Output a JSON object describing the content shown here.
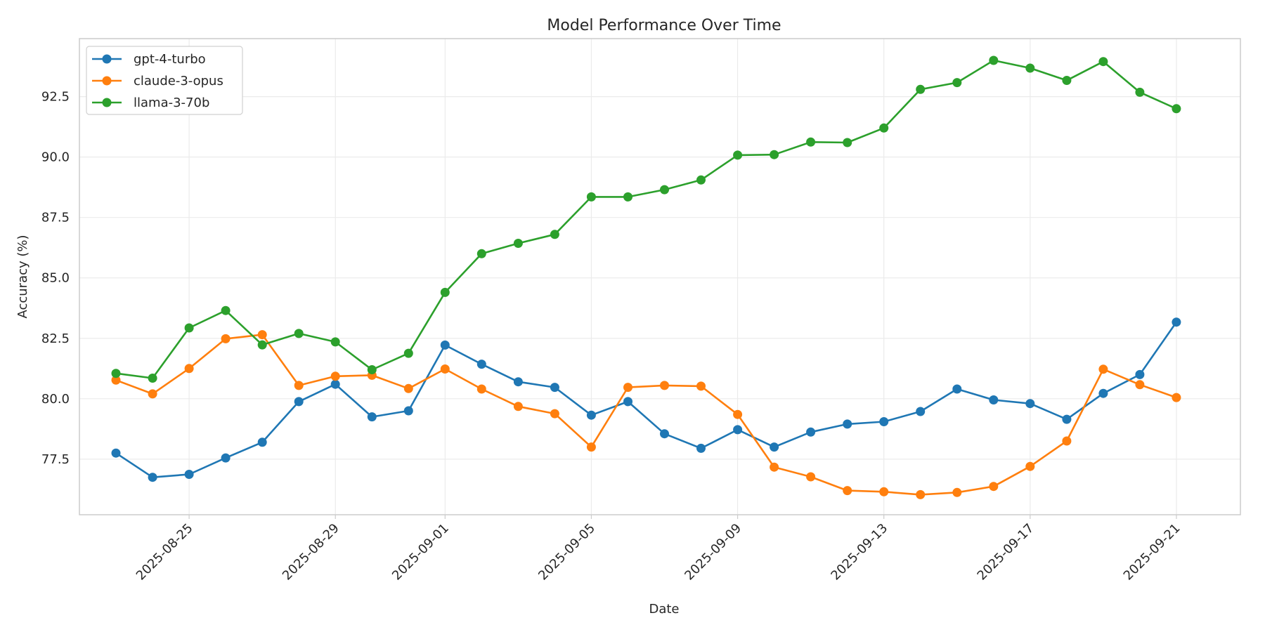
{
  "chart_data": {
    "type": "line",
    "title": "Model Performance Over Time",
    "xlabel": "Date",
    "ylabel": "Accuracy (%)",
    "x_ticks": [
      "2025-08-25",
      "2025-08-29",
      "2025-09-01",
      "2025-09-05",
      "2025-09-09",
      "2025-09-13",
      "2025-09-17",
      "2025-09-21"
    ],
    "y_ticks": [
      "77.5",
      "80.0",
      "82.5",
      "85.0",
      "87.5",
      "90.0",
      "92.5"
    ],
    "ylim": [
      75.2,
      94.9
    ],
    "xlim": [
      "2025-08-22T00:00",
      "2025-09-22T18:00"
    ],
    "grid": true,
    "legend_position": "upper-left",
    "x": [
      "2025-08-23",
      "2025-08-24",
      "2025-08-25",
      "2025-08-26",
      "2025-08-27",
      "2025-08-28",
      "2025-08-29",
      "2025-08-30",
      "2025-08-31",
      "2025-09-01",
      "2025-09-02",
      "2025-09-03",
      "2025-09-04",
      "2025-09-05",
      "2025-09-06",
      "2025-09-07",
      "2025-09-08",
      "2025-09-09",
      "2025-09-10",
      "2025-09-11",
      "2025-09-12",
      "2025-09-13",
      "2025-09-14",
      "2025-09-15",
      "2025-09-16",
      "2025-09-17",
      "2025-09-18",
      "2025-09-19",
      "2025-09-20",
      "2025-09-21"
    ],
    "series": [
      {
        "name": "gpt-4-turbo",
        "color": "#1f77b4",
        "values": [
          77.75,
          76.75,
          76.87,
          77.55,
          78.2,
          79.88,
          80.6,
          79.25,
          79.5,
          82.22,
          81.43,
          80.7,
          80.47,
          79.32,
          79.88,
          78.55,
          77.95,
          78.72,
          78.0,
          78.62,
          78.95,
          79.05,
          79.47,
          80.4,
          79.95,
          79.8,
          79.15,
          80.22,
          81.0,
          83.17
        ]
      },
      {
        "name": "claude-3-opus",
        "color": "#ff7f0e",
        "values": [
          80.77,
          80.2,
          81.25,
          82.48,
          82.65,
          80.55,
          80.93,
          80.97,
          80.42,
          81.23,
          80.4,
          79.68,
          79.38,
          78.0,
          80.47,
          80.55,
          80.52,
          79.35,
          77.17,
          76.77,
          76.2,
          76.15,
          76.03,
          76.12,
          76.37,
          77.2,
          78.25,
          81.22,
          80.58,
          80.05
        ]
      },
      {
        "name": "llama-3-70b",
        "color": "#2ca02c",
        "values": [
          81.05,
          80.85,
          82.93,
          83.65,
          82.23,
          82.7,
          82.35,
          81.2,
          81.88,
          84.4,
          86.0,
          86.43,
          86.8,
          88.35,
          88.35,
          88.65,
          89.05,
          90.08,
          90.1,
          90.62,
          90.6,
          91.2,
          92.8,
          93.08,
          94.0,
          93.68,
          93.17,
          93.95,
          92.68,
          92.0
        ]
      }
    ]
  }
}
